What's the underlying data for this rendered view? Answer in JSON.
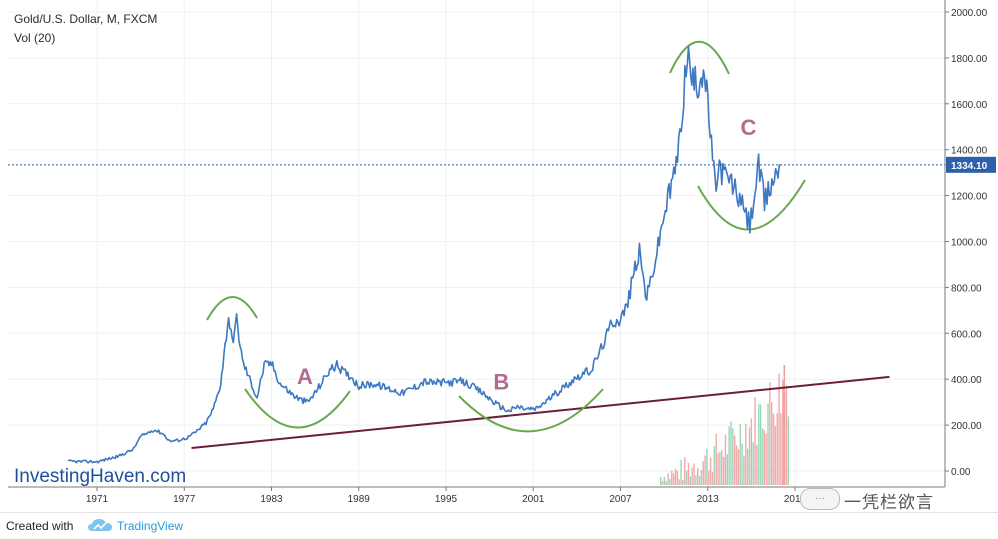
{
  "header": {
    "symbol_line": "Gold/U.S. Dollar, M, FXCM",
    "volume_line": "Vol (20)"
  },
  "price_label": "1334.10",
  "brand": "InvestingHaven.com",
  "footer": {
    "created_with": "Created with",
    "tradingview": "TradingView"
  },
  "watermark": {
    "text": "一凭栏欲言",
    "badge": "···"
  },
  "annotations": [
    {
      "label": "A",
      "year": 1985.3,
      "price": 380
    },
    {
      "label": "B",
      "year": 1998.8,
      "price": 355
    },
    {
      "label": "C",
      "year": 2015.8,
      "price": 1465
    }
  ],
  "colors": {
    "price_line": "#3d78c2",
    "arc": "#6aa84f",
    "trendline": "#6b1f3a",
    "annotation": "#b56a8f",
    "current_price_line": "#2e5fa8",
    "price_badge": "#2e5fa8",
    "brand": "#1f4f9e",
    "vol_green": "#8fd1b0",
    "vol_red": "#f1a0a0"
  },
  "chart_data": {
    "type": "line",
    "title": "Gold/U.S. Dollar, M, FXCM",
    "x_ticks": [
      1971,
      1977,
      1983,
      1989,
      1995,
      2001,
      2007,
      2013,
      2019
    ],
    "y_ticks": [
      0,
      200,
      400,
      600,
      800,
      1000,
      1200,
      1400,
      1600,
      1800,
      2000
    ],
    "y_tick_labels": [
      "0.00",
      "200.00",
      "400.00",
      "600.00",
      "800.00",
      "1000.00",
      "1200.00",
      "1400.00",
      "1600.00",
      "1800.00",
      "2000.00"
    ],
    "xlim": [
      1968,
      2025
    ],
    "ylim": [
      -60,
      2020
    ],
    "grid": true,
    "last_price": 1334.1,
    "series": [
      {
        "x": [
          1969.0,
          1971.0,
          1972.5,
          1973.5,
          1974.0,
          1974.9,
          1975.5,
          1976.0,
          1976.7,
          1977.2,
          1977.8,
          1978.5,
          1979.0,
          1979.5,
          1980.05,
          1980.3,
          1980.6,
          1981.0,
          1981.5,
          1982.0,
          1982.5,
          1983.0,
          1983.6,
          1984.5,
          1985.0,
          1985.5,
          1986.0,
          1987.0,
          1987.5,
          1988.0,
          1988.5,
          1989.0,
          1990.0,
          1991.0,
          1992.0,
          1993.0,
          1993.5,
          1994.0,
          1995.0,
          1996.0,
          1996.5,
          1997.5,
          1998.5,
          1999.3,
          1999.9,
          2000.5,
          2001.2,
          2002.0,
          2003.0,
          2004.0,
          2005.0,
          2006.0,
          2006.4,
          2007.0,
          2007.5,
          2008.0,
          2008.3,
          2008.8,
          2009.5,
          2010.0,
          2010.5,
          2011.0,
          2011.6,
          2011.9,
          2012.3,
          2012.7,
          2013.0,
          2013.5,
          2013.8,
          2014.3,
          2014.8,
          2015.2,
          2015.9,
          2016.5,
          2016.9,
          2017.5,
          2018.0
        ],
        "y": [
          42,
          40,
          65,
          95,
          150,
          180,
          165,
          130,
          135,
          145,
          170,
          210,
          270,
          380,
          675,
          560,
          660,
          480,
          400,
          320,
          460,
          470,
          380,
          330,
          310,
          300,
          340,
          440,
          460,
          430,
          410,
          370,
          380,
          360,
          340,
          370,
          390,
          385,
          385,
          390,
          380,
          340,
          290,
          260,
          280,
          270,
          270,
          310,
          360,
          410,
          440,
          580,
          650,
          660,
          730,
          890,
          950,
          750,
          950,
          1120,
          1240,
          1400,
          1830,
          1700,
          1680,
          1760,
          1600,
          1240,
          1320,
          1280,
          1240,
          1180,
          1070,
          1330,
          1170,
          1270,
          1334
        ]
      }
    ]
  }
}
